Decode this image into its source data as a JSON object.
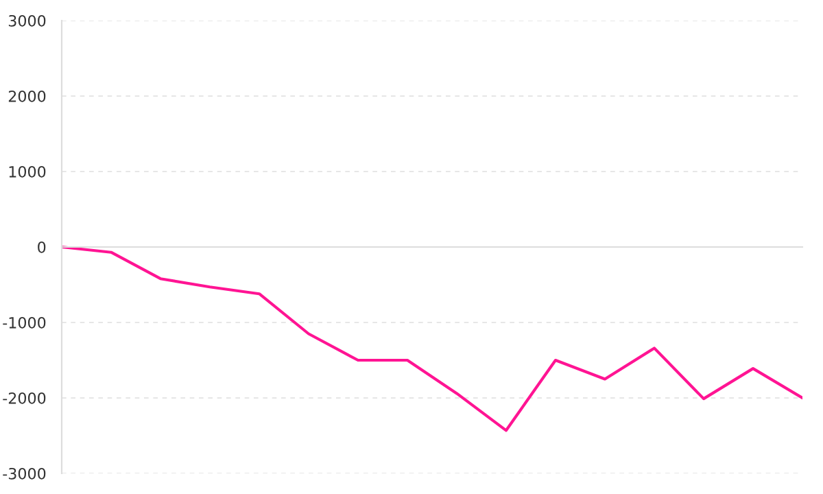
{
  "chart_data": {
    "type": "line",
    "categories": [
      null,
      null,
      null,
      null,
      null,
      null,
      null,
      null,
      null,
      null,
      null,
      null,
      null,
      null,
      null,
      null
    ],
    "series": [
      {
        "color": "#ff1493",
        "values": [
          0,
          -70,
          -420,
          -530,
          -620,
          -1150,
          -1500,
          -1500,
          -1940,
          -2430,
          -1500,
          -1750,
          -1340,
          -2010,
          -1610,
          -2000
        ]
      }
    ],
    "ylim": [
      -3000,
      3000
    ],
    "yticks": [
      -3000,
      -2000,
      -1000,
      0,
      1000,
      2000,
      3000
    ],
    "tick_labels": "y",
    "grid": "y",
    "marker": "none",
    "line_style": "solid"
  }
}
